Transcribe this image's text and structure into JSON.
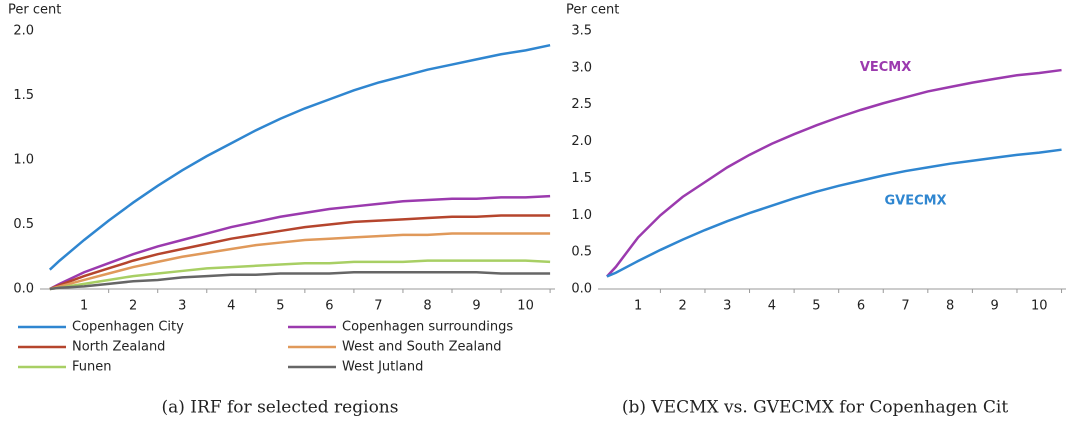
{
  "chart_data": [
    {
      "type": "line",
      "y_label": "Per cent",
      "caption": "(a) IRF for selected regions",
      "x": [
        0.3,
        0.5,
        1,
        1.5,
        2,
        2.5,
        3,
        3.5,
        4,
        4.5,
        5,
        5.5,
        6,
        6.5,
        7,
        7.5,
        8,
        8.5,
        9,
        9.5,
        10,
        10.5
      ],
      "xlim": [
        0.1,
        10.6
      ],
      "xticks": [
        1,
        2,
        3,
        4,
        5,
        6,
        7,
        8,
        9,
        10
      ],
      "ylim": [
        0,
        2
      ],
      "yticks": [
        {
          "value": 0,
          "label": "0.0"
        },
        0.5,
        {
          "value": 1,
          "label": "1.0"
        },
        1.5,
        {
          "value": 2,
          "label": "2.0"
        }
      ],
      "legend": "bottom",
      "series": [
        {
          "name": "Copenhagen City",
          "color": "#2f86d0",
          "values": [
            0.15,
            0.22,
            0.38,
            0.53,
            0.67,
            0.8,
            0.92,
            1.03,
            1.13,
            1.23,
            1.32,
            1.4,
            1.47,
            1.54,
            1.6,
            1.65,
            1.7,
            1.74,
            1.78,
            1.82,
            1.85,
            1.89
          ]
        },
        {
          "name": "Copenhagen surroundings",
          "color": "#9b3aae",
          "values": [
            0,
            0.04,
            0.13,
            0.2,
            0.27,
            0.33,
            0.38,
            0.43,
            0.48,
            0.52,
            0.56,
            0.59,
            0.62,
            0.64,
            0.66,
            0.68,
            0.69,
            0.7,
            0.7,
            0.71,
            0.71,
            0.72
          ]
        },
        {
          "name": "North Zealand",
          "color": "#b5452d",
          "values": [
            0,
            0.03,
            0.1,
            0.16,
            0.22,
            0.27,
            0.31,
            0.35,
            0.39,
            0.42,
            0.45,
            0.48,
            0.5,
            0.52,
            0.53,
            0.54,
            0.55,
            0.56,
            0.56,
            0.57,
            0.57,
            0.57
          ]
        },
        {
          "name": "West and South Zealand",
          "color": "#e0995a",
          "values": [
            0,
            0.02,
            0.07,
            0.12,
            0.17,
            0.21,
            0.25,
            0.28,
            0.31,
            0.34,
            0.36,
            0.38,
            0.39,
            0.4,
            0.41,
            0.42,
            0.42,
            0.43,
            0.43,
            0.43,
            0.43,
            0.43
          ]
        },
        {
          "name": "Funen",
          "color": "#a8cf64",
          "values": [
            0,
            0.01,
            0.04,
            0.07,
            0.1,
            0.12,
            0.14,
            0.16,
            0.17,
            0.18,
            0.19,
            0.2,
            0.2,
            0.21,
            0.21,
            0.21,
            0.22,
            0.22,
            0.22,
            0.22,
            0.22,
            0.21
          ]
        },
        {
          "name": "West Jutland",
          "color": "#666666",
          "values": [
            0,
            0.01,
            0.02,
            0.04,
            0.06,
            0.07,
            0.09,
            0.1,
            0.11,
            0.11,
            0.12,
            0.12,
            0.12,
            0.13,
            0.13,
            0.13,
            0.13,
            0.13,
            0.13,
            0.12,
            0.12,
            0.12
          ]
        }
      ]
    },
    {
      "type": "line",
      "y_label": "Per cent",
      "caption": "(b) VECMX vs. GVECMX for Copenhagen Cit",
      "x": [
        0.3,
        0.5,
        1,
        1.5,
        2,
        2.5,
        3,
        3.5,
        4,
        4.5,
        5,
        5.5,
        6,
        6.5,
        7,
        7.5,
        8,
        8.5,
        9,
        9.5,
        10,
        10.5
      ],
      "xlim": [
        0.1,
        10.6
      ],
      "xticks": [
        1,
        2,
        3,
        4,
        5,
        6,
        7,
        8,
        9,
        10
      ],
      "ylim": [
        0,
        3.5
      ],
      "yticks": [
        {
          "value": 0,
          "label": "0.0"
        },
        0.5,
        {
          "value": 1,
          "label": "1.0"
        },
        1.5,
        {
          "value": 2,
          "label": "2.0"
        },
        2.5,
        {
          "value": 3,
          "label": "3.0"
        },
        3.5
      ],
      "legend": "inline",
      "series": [
        {
          "name": "VECMX",
          "color": "#9b3aae",
          "values": [
            0.17,
            0.3,
            0.7,
            1.0,
            1.25,
            1.45,
            1.65,
            1.82,
            1.97,
            2.1,
            2.22,
            2.33,
            2.43,
            2.52,
            2.6,
            2.68,
            2.74,
            2.8,
            2.85,
            2.9,
            2.93,
            2.97
          ]
        },
        {
          "name": "GVECMX",
          "color": "#2f86d0",
          "values": [
            0.17,
            0.22,
            0.38,
            0.53,
            0.67,
            0.8,
            0.92,
            1.03,
            1.13,
            1.23,
            1.32,
            1.4,
            1.47,
            1.54,
            1.6,
            1.65,
            1.7,
            1.74,
            1.78,
            1.82,
            1.85,
            1.89
          ]
        }
      ]
    }
  ]
}
